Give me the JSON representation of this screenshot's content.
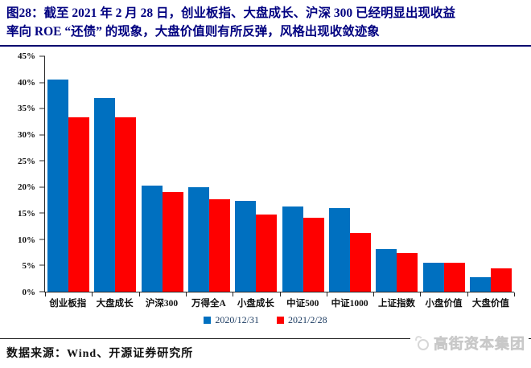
{
  "figure": {
    "label": "图28：",
    "title_line1": "截至 2021 年 2 月 28 日，创业板指、大盘成长、沪深 300 已经明显出现收益",
    "title_line2": "率向 ROE “还债” 的现象，大盘价值则有所反弹，风格出现收敛迹象"
  },
  "chart_data": {
    "type": "bar",
    "categories": [
      "创业板指",
      "大盘成长",
      "沪深300",
      "万得全A",
      "小盘成长",
      "中证500",
      "中证1000",
      "上证指数",
      "小盘价值",
      "大盘价值"
    ],
    "series": [
      {
        "name": "2020/12/31",
        "color": "#0070C0",
        "values": [
          40.5,
          37.0,
          20.2,
          20.0,
          17.4,
          16.3,
          16.0,
          8.2,
          5.6,
          2.8
        ]
      },
      {
        "name": "2021/2/28",
        "color": "#FE0000",
        "values": [
          33.4,
          33.3,
          19.0,
          17.6,
          14.8,
          14.2,
          11.2,
          7.4,
          5.5,
          4.5
        ]
      }
    ],
    "title": "",
    "xlabel": "",
    "ylabel": "",
    "ylim": [
      0,
      45
    ],
    "ytick_step": 5,
    "ytick_labels": [
      "0%",
      "5%",
      "10%",
      "15%",
      "20%",
      "25%",
      "30%",
      "35%",
      "40%",
      "45%"
    ],
    "grid": false,
    "legend_position": "bottom"
  },
  "footer": {
    "source": "数据来源：Wind、开源证券研究所",
    "logo_text": "高街资本集团"
  },
  "colors": {
    "title_navy": "#000080",
    "axis_black": "#262626",
    "legend_text": "#17375e",
    "logo_gray": "#d2d2d2"
  }
}
